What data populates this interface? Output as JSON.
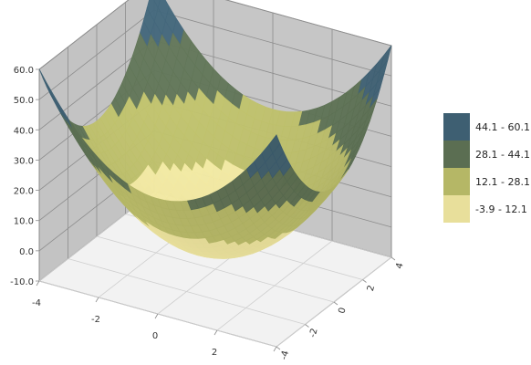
{
  "chart_data": {
    "type": "surface-3d",
    "title": "",
    "z_axis": {
      "min": -10.0,
      "max": 60.0,
      "ticks": [
        "-10.0",
        "0.0",
        "10.0",
        "20.0",
        "30.0",
        "40.0",
        "50.0",
        "60.0"
      ],
      "values": [
        -10,
        0,
        10,
        20,
        30,
        40,
        50,
        60
      ]
    },
    "x_axis": {
      "min": -4,
      "max": 4,
      "ticks": [
        "-4",
        "-2",
        "0",
        "2",
        "4"
      ],
      "values": [
        -4,
        -2,
        0,
        2,
        4
      ]
    },
    "y_axis": {
      "min": -4,
      "max": 4,
      "ticks": [
        "-4",
        "-2",
        "0",
        "2",
        "4"
      ],
      "values": [
        -4,
        -2,
        0,
        2,
        4
      ]
    },
    "surface": {
      "function": "paraboloid",
      "z_at_center": -3.9,
      "z_at_corner": 60.1
    },
    "legend": {
      "position": "right",
      "items": [
        {
          "label": "44.1 - 60.1",
          "color": "#3e5f72",
          "min": 44.1,
          "max": 60.1
        },
        {
          "label": "28.1 - 44.1",
          "color": "#5b6e52",
          "min": 28.1,
          "max": 44.1
        },
        {
          "label": "12.1 - 28.1",
          "color": "#b5b766",
          "min": 12.1,
          "max": 28.1
        },
        {
          "label": "-3.9 - 12.1",
          "color": "#e8df9b",
          "min": -3.9,
          "max": 12.1
        }
      ]
    },
    "grid": true
  }
}
